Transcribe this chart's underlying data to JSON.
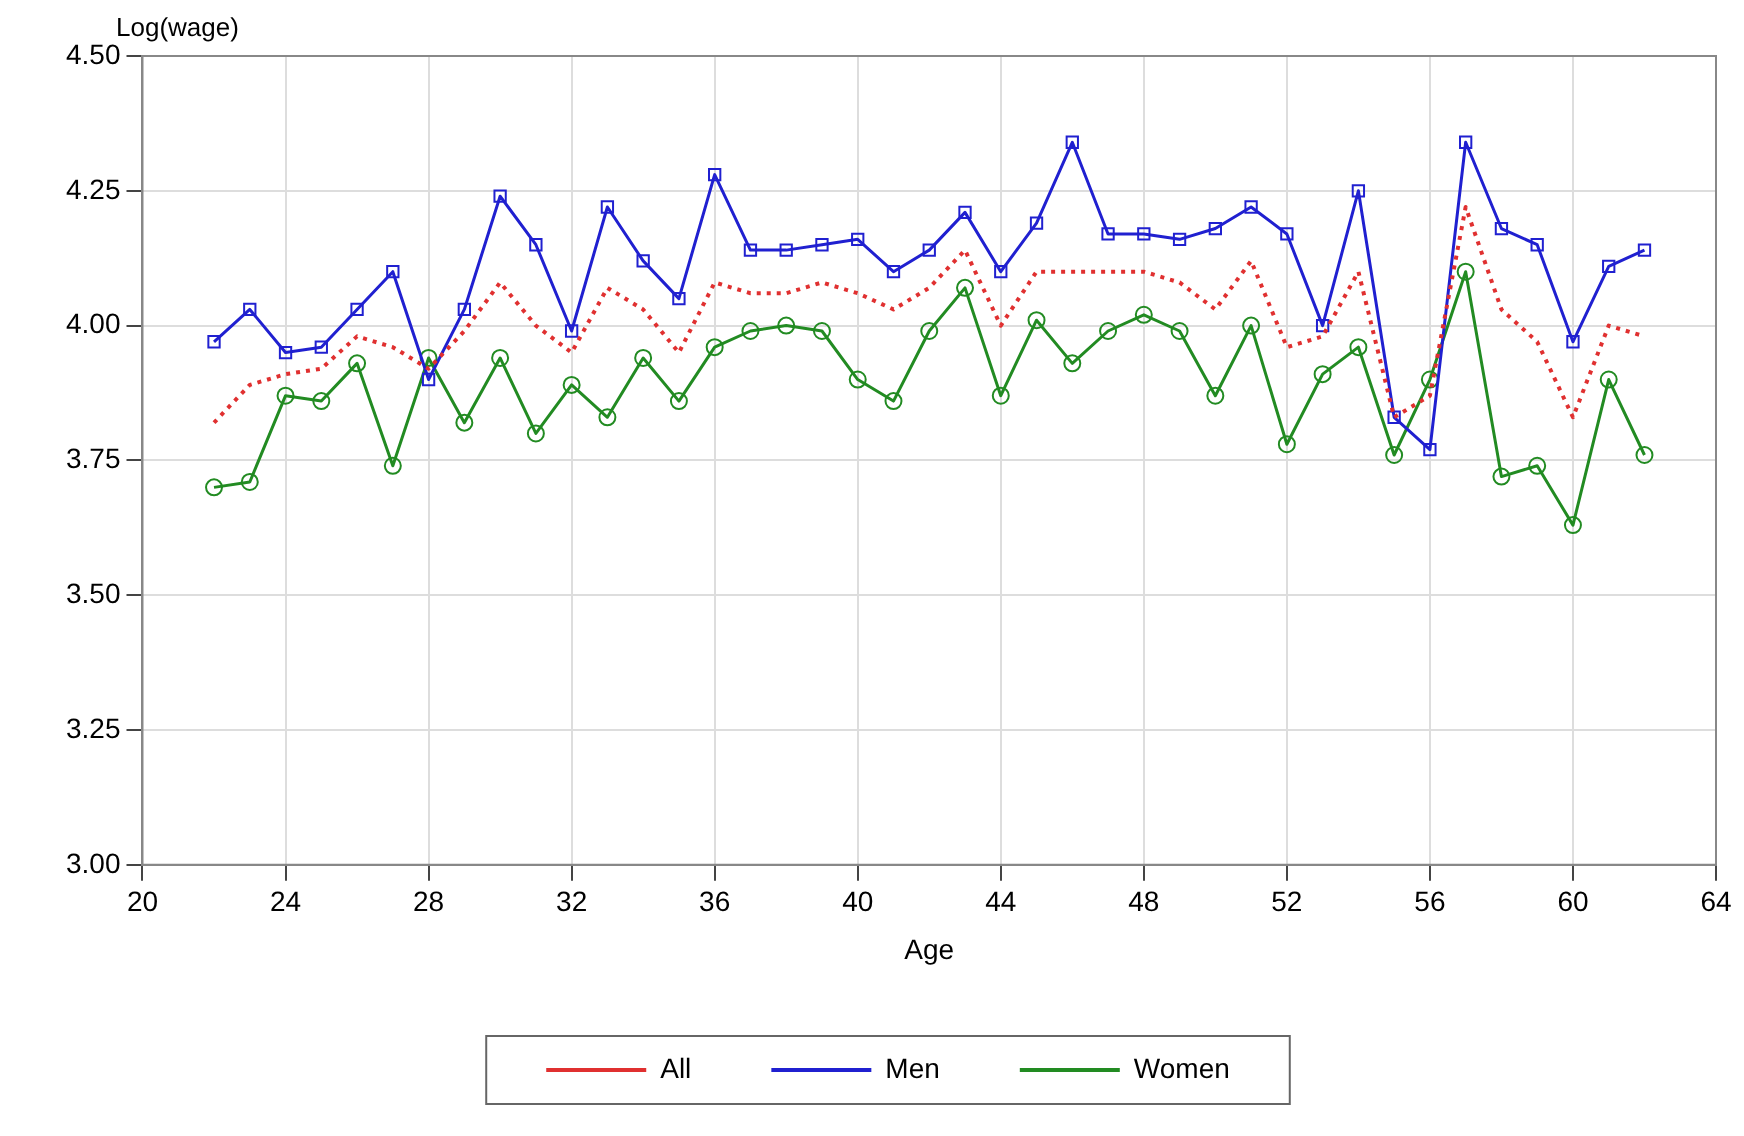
{
  "chart_data": {
    "type": "line",
    "ylabel": "Log(wage)",
    "xlabel": "Age",
    "x": [
      22,
      23,
      24,
      25,
      26,
      27,
      28,
      29,
      30,
      31,
      32,
      33,
      34,
      35,
      36,
      37,
      38,
      39,
      40,
      41,
      42,
      43,
      44,
      45,
      46,
      47,
      48,
      49,
      50,
      51,
      52,
      53,
      54,
      55,
      56,
      57,
      58,
      59,
      60,
      61,
      62
    ],
    "xlim": [
      20,
      64
    ],
    "xticks": [
      20,
      24,
      28,
      32,
      36,
      40,
      44,
      48,
      52,
      56,
      60,
      64
    ],
    "ylim": [
      3,
      4.5
    ],
    "yticks": [
      {
        "value": 3,
        "label": "3.00"
      },
      {
        "value": 3.25,
        "label": "3.25"
      },
      {
        "value": 3.5,
        "label": "3.50"
      },
      {
        "value": 3.75,
        "label": "3.75"
      },
      {
        "value": 4,
        "label": "4.00"
      },
      {
        "value": 4.25,
        "label": "4.25"
      },
      {
        "value": 4.5,
        "label": "4.50"
      }
    ],
    "grid": true,
    "legend": "bottom",
    "series": [
      {
        "name": "All",
        "color": "#e03030",
        "line_style": "dotted",
        "marker": "none",
        "values": [
          3.82,
          3.89,
          3.91,
          3.92,
          3.98,
          3.96,
          3.92,
          3.99,
          4.08,
          4.0,
          3.95,
          4.07,
          4.03,
          3.95,
          4.08,
          4.06,
          4.06,
          4.08,
          4.06,
          4.03,
          4.07,
          4.14,
          4.0,
          4.1,
          4.1,
          4.1,
          4.1,
          4.08,
          4.03,
          4.12,
          3.96,
          3.98,
          4.1,
          3.83,
          3.87,
          4.22,
          4.03,
          3.97,
          3.83,
          4.0,
          3.98
        ]
      },
      {
        "name": "Men",
        "color": "#2020d0",
        "line_style": "solid",
        "marker": "square",
        "values": [
          3.97,
          4.03,
          3.95,
          3.96,
          4.03,
          4.1,
          3.9,
          4.03,
          4.24,
          4.15,
          3.99,
          4.22,
          4.12,
          4.05,
          4.28,
          4.14,
          4.14,
          4.15,
          4.16,
          4.1,
          4.14,
          4.21,
          4.1,
          4.19,
          4.34,
          4.17,
          4.17,
          4.16,
          4.18,
          4.22,
          4.17,
          4.0,
          4.25,
          3.83,
          3.77,
          4.34,
          4.18,
          4.15,
          3.97,
          4.11,
          4.14
        ]
      },
      {
        "name": "Women",
        "color": "#228b22",
        "line_style": "solid",
        "marker": "circle",
        "values": [
          3.7,
          3.71,
          3.87,
          3.86,
          3.93,
          3.74,
          3.94,
          3.82,
          3.94,
          3.8,
          3.89,
          3.83,
          3.94,
          3.86,
          3.96,
          3.99,
          4.0,
          3.99,
          3.9,
          3.86,
          3.99,
          4.07,
          3.87,
          4.01,
          3.93,
          3.99,
          4.02,
          3.99,
          3.87,
          4.0,
          3.78,
          3.91,
          3.96,
          3.76,
          3.9,
          4.1,
          3.72,
          3.74,
          3.63,
          3.9,
          3.76
        ]
      }
    ]
  }
}
